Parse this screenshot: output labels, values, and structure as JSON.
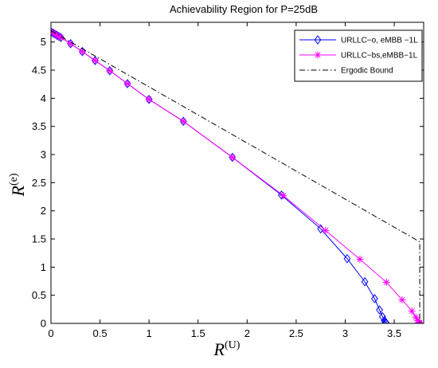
{
  "chart_data": {
    "type": "line",
    "title": "Achievability Region for P=25dB",
    "xlabel": {
      "base": "R",
      "sup": "(U)"
    },
    "ylabel": {
      "base": "R",
      "sup": "(e)"
    },
    "xlim": [
      0,
      3.8
    ],
    "ylim": [
      0,
      5.35
    ],
    "xticks": [
      0,
      0.5,
      1,
      1.5,
      2,
      2.5,
      3,
      3.5
    ],
    "yticks": [
      0,
      0.5,
      1,
      1.5,
      2,
      2.5,
      3,
      3.5,
      4,
      4.5,
      5
    ],
    "tick_labels_x": [
      "0",
      "0.5",
      "1",
      "1.5",
      "2",
      "2.5",
      "3",
      "3.5"
    ],
    "tick_labels_y": [
      "0",
      "0.5",
      "1",
      "1.5",
      "2",
      "2.5",
      "3",
      "3.5",
      "4",
      "4.5",
      "5"
    ],
    "grid": false,
    "legend_position": "top-right",
    "series": [
      {
        "name": "URLLC−o, eMBB −1L",
        "color": "#0000ff",
        "marker": "diamond",
        "x": [
          0,
          0.02,
          0.04,
          0.06,
          0.08,
          0.1,
          0.2,
          0.32,
          0.45,
          0.6,
          0.78,
          1.0,
          1.35,
          1.85,
          2.35,
          2.75,
          3.02,
          3.2,
          3.3,
          3.35,
          3.38,
          3.4,
          3.41,
          3.415,
          3.42
        ],
        "y": [
          5.18,
          5.16,
          5.14,
          5.12,
          5.1,
          5.08,
          4.97,
          4.83,
          4.67,
          4.49,
          4.26,
          3.98,
          3.59,
          2.95,
          2.28,
          1.68,
          1.15,
          0.74,
          0.44,
          0.24,
          0.12,
          0.05,
          0.02,
          0.01,
          0.0
        ]
      },
      {
        "name": "URLLC−bs,eMBB−1L",
        "color": "#ff00ff",
        "marker": "star",
        "x": [
          0,
          0.02,
          0.04,
          0.06,
          0.08,
          0.1,
          0.2,
          0.32,
          0.45,
          0.6,
          0.78,
          1.0,
          1.35,
          1.85,
          2.37,
          2.8,
          3.15,
          3.42,
          3.58,
          3.68,
          3.72,
          3.74,
          3.75,
          3.755,
          3.76
        ],
        "y": [
          5.18,
          5.16,
          5.14,
          5.12,
          5.1,
          5.08,
          4.97,
          4.83,
          4.67,
          4.49,
          4.26,
          3.98,
          3.59,
          2.95,
          2.27,
          1.65,
          1.14,
          0.73,
          0.42,
          0.22,
          0.11,
          0.05,
          0.02,
          0.01,
          0.0
        ]
      },
      {
        "name": "Ergodic Bound",
        "color": "#000000",
        "marker": "none",
        "dash": "dashdot",
        "x": [
          0,
          3.76,
          3.76
        ],
        "y": [
          5.2,
          1.45,
          0
        ]
      }
    ]
  }
}
